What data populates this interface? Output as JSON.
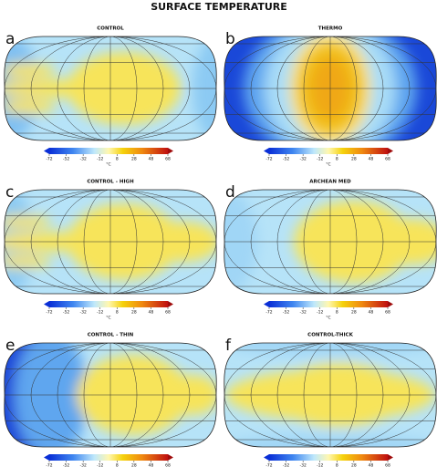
{
  "title": "SURFACE TEMPERATURE",
  "chart_data": [
    {
      "type": "map",
      "label": "a",
      "title": "CONTROL",
      "clim": [
        -72,
        68
      ],
      "cticks": [
        -72,
        -52,
        -32,
        -12,
        8,
        28,
        48,
        68
      ],
      "clabel": "°C"
    },
    {
      "type": "map",
      "label": "b",
      "title": "THERMO",
      "clim": [
        -72,
        68
      ],
      "cticks": [
        -72,
        -52,
        -32,
        -12,
        8,
        28,
        48,
        68
      ],
      "clabel": "°C"
    },
    {
      "type": "map",
      "label": "c",
      "title": "CONTROL - HIGH",
      "clim": [
        -72,
        68
      ],
      "cticks": [
        -72,
        -52,
        -32,
        -12,
        8,
        28,
        48,
        68
      ],
      "clabel": "°C"
    },
    {
      "type": "map",
      "label": "d",
      "title": "ARCHEAN MED",
      "clim": [
        -72,
        68
      ],
      "cticks": [
        -72,
        -52,
        -32,
        -12,
        8,
        28,
        48,
        68
      ],
      "clabel": "°C"
    },
    {
      "type": "map",
      "label": "e",
      "title": "CONTROL - THIN",
      "clim": [
        -72,
        68
      ],
      "cticks": [
        -72,
        -52,
        -32,
        -12,
        8,
        28,
        48,
        68
      ],
      "clabel": "°C"
    },
    {
      "type": "map",
      "label": "f",
      "title": "CONTROL-THICK",
      "clim": [
        -72,
        68
      ],
      "cticks": [
        -72,
        -52,
        -32,
        -12,
        8,
        28,
        48,
        68
      ],
      "clabel": "°C"
    }
  ]
}
